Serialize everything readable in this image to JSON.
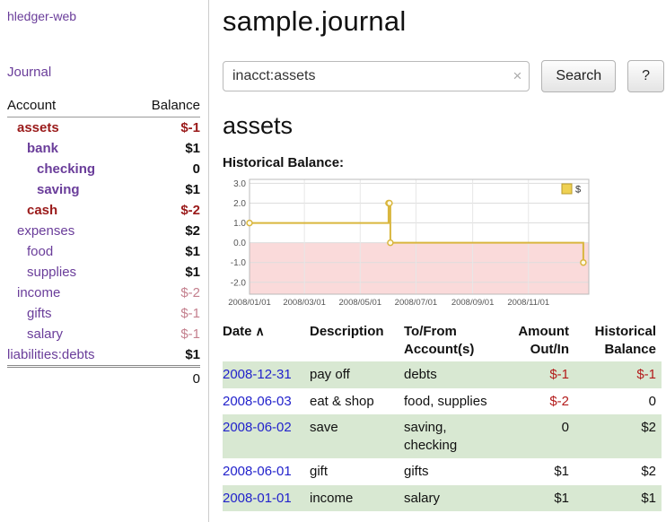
{
  "colors": {
    "purple": "#6a3d9a",
    "neg_strong": "#9a1a1a",
    "neg_light": "#c4808e",
    "neg_table": "#b31b1b",
    "link_blue": "#2222cc",
    "row_stripe": "#d8e8d2",
    "chart_line": "#d9b63e",
    "chart_fill_neg": "#fadada",
    "legend_fill": "#efd152"
  },
  "sidebar": {
    "app_title": "hledger-web",
    "journal_link": "Journal",
    "account_header": "Account",
    "balance_header": "Balance",
    "accounts": [
      {
        "name": "assets",
        "indent": 1,
        "bold": true,
        "name_style": "neg",
        "balance": "$-1",
        "balance_style": "neg-bold"
      },
      {
        "name": "bank",
        "indent": 2,
        "bold": true,
        "balance": "$1",
        "balance_style": "bold"
      },
      {
        "name": "checking",
        "indent": 3,
        "bold": true,
        "balance": "0",
        "balance_style": "bold"
      },
      {
        "name": "saving",
        "indent": 3,
        "bold": true,
        "balance": "$1",
        "balance_style": "bold"
      },
      {
        "name": "cash",
        "indent": 2,
        "bold": true,
        "name_style": "neg",
        "balance": "$-2",
        "balance_style": "neg-bold"
      },
      {
        "name": "expenses",
        "indent": 1,
        "bold": false,
        "balance": "$2",
        "balance_style": "bold"
      },
      {
        "name": "food",
        "indent": 2,
        "bold": false,
        "balance": "$1",
        "balance_style": "bold"
      },
      {
        "name": "supplies",
        "indent": 2,
        "bold": false,
        "balance": "$1",
        "balance_style": "bold"
      },
      {
        "name": "income",
        "indent": 1,
        "bold": false,
        "balance": "$-2",
        "balance_style": "neg-light"
      },
      {
        "name": "gifts",
        "indent": 2,
        "bold": false,
        "balance": "$-1",
        "balance_style": "neg-light"
      },
      {
        "name": "salary",
        "indent": 2,
        "bold": false,
        "balance": "$-1",
        "balance_style": "neg-light"
      },
      {
        "name": "liabilities:debts",
        "indent": 0,
        "bold": false,
        "balance": "$1",
        "balance_style": "bold"
      }
    ],
    "total": "0"
  },
  "main": {
    "title": "sample.journal",
    "search": {
      "value": "inacct:assets",
      "clear": "×",
      "search_button": "Search",
      "help_button": "?"
    },
    "account_heading": "assets",
    "chart_title": "Historical Balance:"
  },
  "chart_data": {
    "type": "line",
    "step": true,
    "title": "Historical Balance",
    "legend": "$",
    "legend_position": "top-right",
    "x_range": [
      "2008-01-01",
      "2009-01-06"
    ],
    "ylim": [
      -2.6,
      3.2
    ],
    "y_ticks": [
      3.0,
      2.0,
      1.0,
      0.0,
      -1.0,
      -2.0
    ],
    "x_ticks": [
      {
        "date": "2008-01-01",
        "label": "2008/01/01"
      },
      {
        "date": "2008-03-01",
        "label": "2008/03/01"
      },
      {
        "date": "2008-05-01",
        "label": "2008/05/01"
      },
      {
        "date": "2008-07-01",
        "label": "2008/07/01"
      },
      {
        "date": "2008-09-01",
        "label": "2008/09/01"
      },
      {
        "date": "2008-11-01",
        "label": "2008/11/01"
      }
    ],
    "negative_region_below": 0,
    "series": [
      {
        "name": "$",
        "points": [
          {
            "date": "2008-01-01",
            "balance": 1
          },
          {
            "date": "2008-06-01",
            "balance": 2
          },
          {
            "date": "2008-06-02",
            "balance": 2
          },
          {
            "date": "2008-06-03",
            "balance": 0
          },
          {
            "date": "2008-12-31",
            "balance": -1
          }
        ]
      }
    ]
  },
  "register": {
    "headers": {
      "date": "Date",
      "sort": "∧",
      "description": "Description",
      "account": [
        "To/From",
        "Account(s)"
      ],
      "amount": [
        "Amount",
        "Out/In"
      ],
      "balance": [
        "Historical",
        "Balance"
      ]
    },
    "rows": [
      {
        "date": "2008-12-31",
        "description": "pay off",
        "accounts": [
          "debts"
        ],
        "amount": "$-1",
        "amount_neg": true,
        "balance": "$-1",
        "balance_neg": true
      },
      {
        "date": "2008-06-03",
        "description": "eat & shop",
        "accounts": [
          "food, supplies"
        ],
        "amount": "$-2",
        "amount_neg": true,
        "balance": "0",
        "balance_neg": false
      },
      {
        "date": "2008-06-02",
        "description": "save",
        "accounts": [
          "saving,",
          "checking"
        ],
        "amount": "0",
        "amount_neg": false,
        "balance": "$2",
        "balance_neg": false
      },
      {
        "date": "2008-06-01",
        "description": "gift",
        "accounts": [
          "gifts"
        ],
        "amount": "$1",
        "amount_neg": false,
        "balance": "$2",
        "balance_neg": false
      },
      {
        "date": "2008-01-01",
        "description": "income",
        "accounts": [
          "salary"
        ],
        "amount": "$1",
        "amount_neg": false,
        "balance": "$1",
        "balance_neg": false
      }
    ]
  }
}
